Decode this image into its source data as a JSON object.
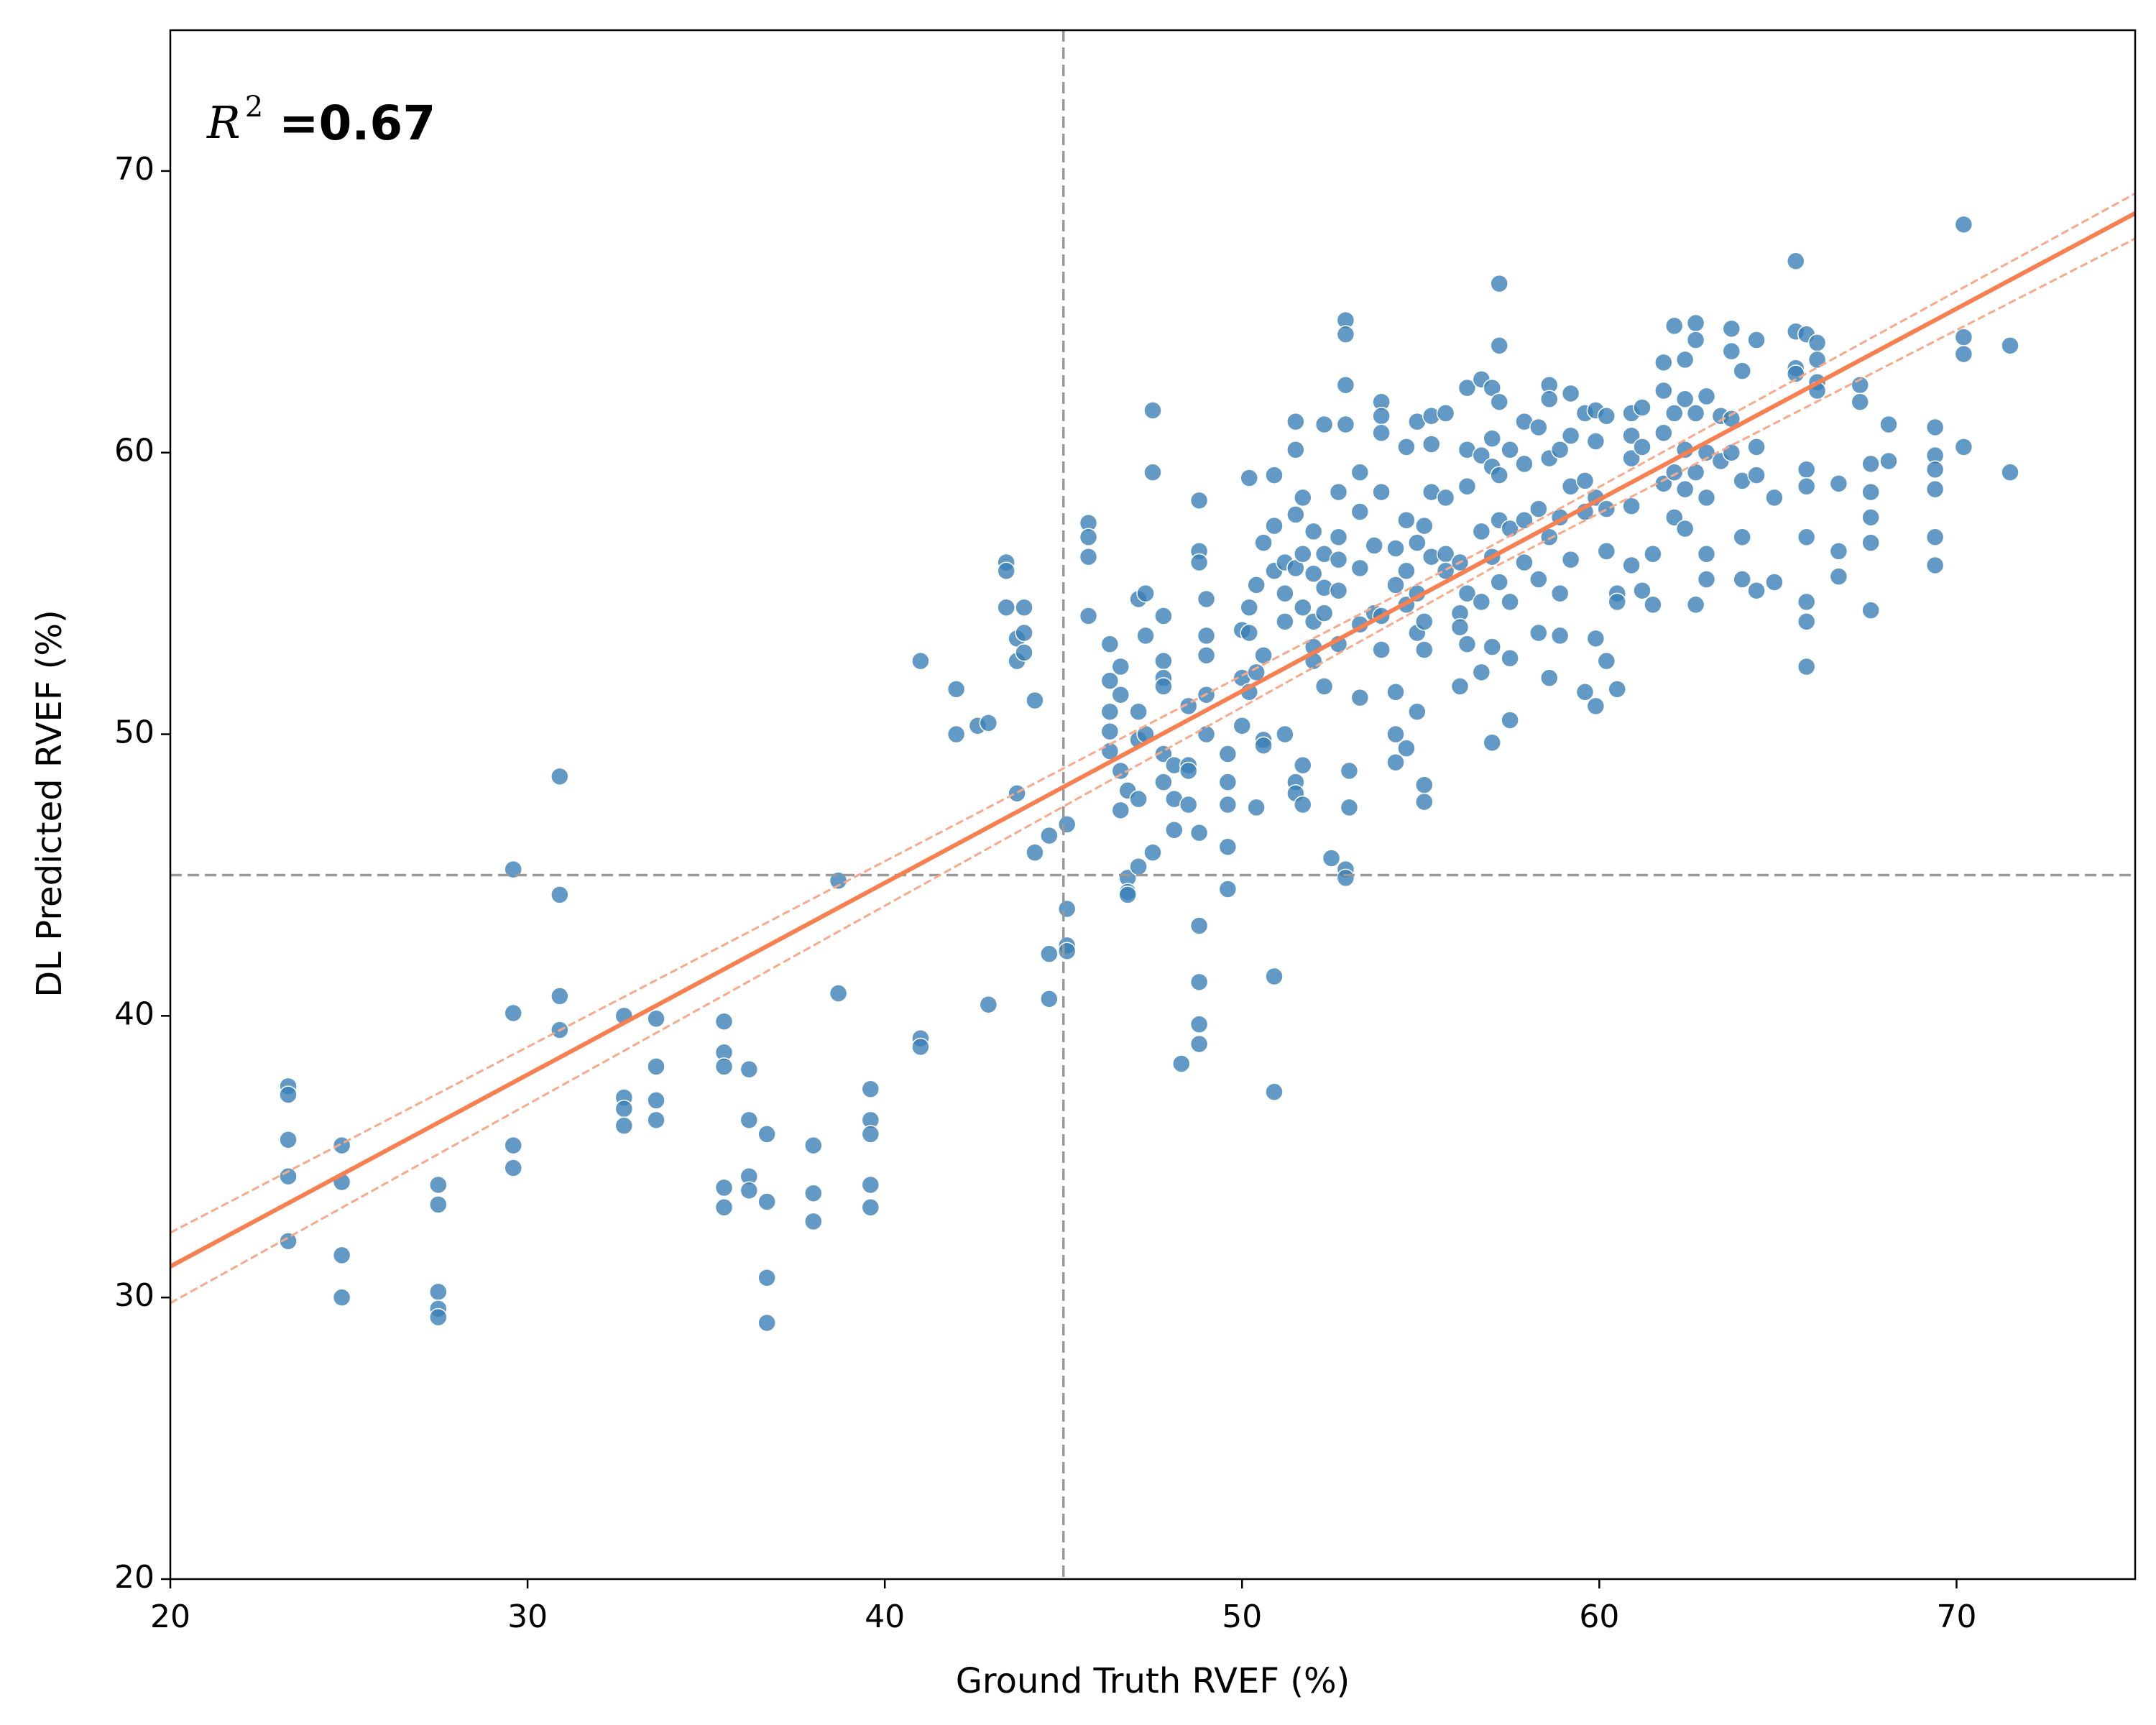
{
  "chart_data": {
    "type": "scatter",
    "xlabel": "Ground Truth RVEF (%)",
    "ylabel": "DL Predicted RVEF (%)",
    "annotation": {
      "symbol": "R",
      "superscript": "2",
      "text": "=0.67"
    },
    "xlim": [
      20,
      75
    ],
    "ylim": [
      20,
      75
    ],
    "xticks": [
      20,
      30,
      40,
      50,
      60,
      70
    ],
    "yticks": [
      20,
      30,
      40,
      50,
      60,
      70
    ],
    "color": "#3b7fb6",
    "fit": {
      "color": "#f77f50",
      "band_color": "#f8a98a",
      "x": [
        20,
        57,
        75
      ],
      "y": [
        31.1,
        56.3,
        68.5
      ],
      "upper": [
        32.3,
        56.7,
        69.2
      ],
      "lower": [
        29.8,
        55.9,
        67.6
      ]
    },
    "reference_lines": {
      "x": 45,
      "y": 45,
      "color": "#999999"
    },
    "x": [
      23.3,
      23.3,
      23.3,
      23.3,
      23.3,
      24.8,
      24.8,
      24.8,
      24.8,
      27.5,
      27.5,
      27.5,
      27.5,
      27.5,
      29.6,
      29.6,
      29.6,
      29.6,
      30.9,
      30.9,
      30.9,
      30.9,
      32.7,
      32.7,
      32.7,
      32.7,
      33.6,
      33.6,
      33.6,
      33.6,
      35.5,
      35.5,
      35.5,
      35.5,
      35.5,
      36.2,
      36.2,
      36.2,
      36.2,
      36.7,
      36.7,
      36.7,
      36.7,
      38.0,
      38.0,
      38.0,
      38.7,
      38.7,
      39.6,
      39.6,
      39.6,
      39.6,
      39.6,
      41.0,
      41.0,
      41.0,
      42.0,
      42.0,
      42.6,
      42.9,
      42.9,
      43.4,
      43.4,
      43.4,
      43.7,
      43.7,
      43.7,
      43.9,
      43.9,
      43.9,
      44.2,
      44.2,
      44.6,
      44.6,
      44.6,
      45.1,
      45.1,
      45.1,
      45.1,
      45.7,
      45.7,
      45.7,
      45.7,
      46.3,
      46.3,
      46.3,
      46.3,
      46.3,
      46.6,
      46.6,
      46.6,
      46.6,
      46.8,
      46.8,
      46.8,
      46.8,
      47.1,
      47.1,
      47.1,
      47.1,
      47.1,
      47.3,
      47.3,
      47.3,
      47.5,
      47.5,
      47.5,
      47.8,
      47.8,
      47.8,
      47.8,
      47.8,
      47.8,
      48.1,
      48.1,
      48.1,
      48.3,
      48.5,
      48.5,
      48.5,
      48.5,
      48.8,
      48.8,
      48.8,
      48.8,
      48.8,
      48.8,
      48.8,
      48.8,
      49.0,
      49.0,
      49.0,
      49.0,
      49.0,
      49.6,
      49.6,
      49.6,
      49.6,
      49.6,
      50.0,
      50.0,
      50.0,
      50.2,
      50.2,
      50.2,
      50.2,
      50.4,
      50.4,
      50.4,
      50.6,
      50.6,
      50.6,
      50.6,
      50.9,
      50.9,
      50.9,
      50.9,
      50.9,
      51.2,
      51.2,
      51.2,
      51.2,
      51.5,
      51.5,
      51.5,
      51.5,
      51.5,
      51.5,
      51.7,
      51.7,
      51.7,
      51.7,
      51.7,
      52.0,
      52.0,
      52.0,
      52.0,
      52.0,
      52.3,
      52.3,
      52.3,
      52.3,
      52.3,
      52.5,
      52.7,
      52.7,
      52.7,
      52.7,
      52.7,
      52.9,
      52.9,
      52.9,
      52.9,
      52.9,
      52.9,
      53.0,
      53.0,
      53.3,
      53.3,
      53.3,
      53.3,
      53.3,
      53.7,
      53.7,
      53.9,
      53.9,
      53.9,
      53.9,
      53.9,
      53.9,
      54.3,
      54.3,
      54.3,
      54.3,
      54.3,
      54.6,
      54.6,
      54.6,
      54.6,
      54.6,
      54.9,
      54.9,
      54.9,
      54.9,
      54.9,
      55.1,
      55.1,
      55.1,
      55.1,
      55.1,
      55.3,
      55.3,
      55.3,
      55.3,
      55.7,
      55.7,
      55.7,
      55.7,
      56.1,
      56.1,
      56.1,
      56.1,
      56.3,
      56.3,
      56.3,
      56.3,
      56.3,
      56.7,
      56.7,
      56.7,
      56.7,
      56.7,
      57.0,
      57.0,
      57.0,
      57.0,
      57.0,
      57.0,
      57.2,
      57.2,
      57.2,
      57.2,
      57.2,
      57.2,
      57.5,
      57.5,
      57.5,
      57.5,
      57.5,
      57.9,
      57.9,
      57.9,
      57.9,
      58.3,
      58.3,
      58.3,
      58.3,
      58.6,
      58.6,
      58.6,
      58.6,
      58.6,
      58.9,
      58.9,
      58.9,
      58.9,
      59.2,
      59.2,
      59.2,
      59.2,
      59.6,
      59.6,
      59.6,
      59.6,
      59.9,
      59.9,
      59.9,
      59.9,
      59.9,
      60.2,
      60.2,
      60.2,
      60.2,
      60.5,
      60.5,
      60.5,
      60.9,
      60.9,
      60.9,
      60.9,
      60.9,
      61.2,
      61.2,
      61.2,
      61.5,
      61.5,
      61.8,
      61.8,
      61.8,
      61.8,
      62.1,
      62.1,
      62.1,
      62.1,
      62.4,
      62.4,
      62.4,
      62.4,
      62.4,
      62.7,
      62.7,
      62.7,
      62.7,
      62.7,
      63.0,
      63.0,
      63.0,
      63.0,
      63.0,
      63.4,
      63.4,
      63.7,
      63.7,
      63.7,
      63.7,
      64.0,
      64.0,
      64.0,
      64.0,
      64.4,
      64.4,
      64.4,
      64.4,
      64.9,
      64.9,
      65.5,
      65.5,
      65.5,
      65.5,
      65.8,
      65.8,
      65.8,
      65.8,
      65.8,
      65.8,
      65.8,
      66.1,
      66.1,
      66.1,
      66.1,
      66.7,
      66.7,
      66.7,
      67.3,
      67.3,
      67.6,
      67.6,
      67.6,
      67.6,
      67.6,
      68.1,
      68.1,
      69.4,
      69.4,
      69.4,
      69.4,
      69.4,
      69.4,
      70.2,
      70.2,
      70.2,
      70.2,
      71.5,
      71.5
    ],
    "values": [
      37.5,
      37.2,
      35.6,
      34.3,
      32.0,
      35.4,
      34.1,
      31.5,
      30.0,
      34.0,
      33.3,
      30.2,
      29.6,
      29.3,
      45.2,
      40.1,
      35.4,
      34.6,
      48.5,
      44.3,
      40.7,
      39.5,
      40.0,
      37.1,
      36.7,
      36.1,
      39.9,
      38.2,
      37.0,
      36.3,
      39.8,
      38.7,
      38.2,
      33.9,
      33.2,
      38.1,
      36.3,
      34.3,
      33.8,
      35.8,
      33.4,
      30.7,
      29.1,
      35.4,
      33.7,
      32.7,
      44.8,
      40.8,
      37.4,
      36.3,
      35.8,
      34.0,
      33.2,
      52.6,
      39.2,
      38.9,
      51.6,
      50.0,
      50.3,
      50.4,
      40.4,
      56.1,
      55.8,
      54.5,
      53.4,
      52.6,
      47.9,
      54.5,
      53.6,
      52.9,
      51.2,
      45.8,
      46.4,
      42.2,
      40.6,
      46.8,
      43.8,
      42.5,
      42.3,
      57.5,
      57.0,
      56.3,
      54.2,
      53.2,
      51.9,
      50.8,
      50.1,
      49.4,
      52.4,
      51.4,
      48.7,
      47.3,
      44.9,
      44.4,
      44.3,
      48.0,
      54.8,
      50.8,
      49.8,
      47.7,
      45.3,
      55.0,
      53.5,
      50.0,
      61.5,
      59.3,
      45.8,
      54.2,
      52.6,
      52.0,
      51.7,
      49.3,
      48.3,
      48.9,
      47.7,
      46.6,
      38.3,
      51.0,
      48.9,
      48.7,
      47.5,
      58.3,
      56.5,
      56.1,
      46.5,
      43.2,
      41.2,
      39.7,
      39.0,
      54.8,
      53.5,
      52.8,
      51.4,
      50.0,
      49.3,
      48.3,
      47.5,
      46.0,
      44.5,
      53.7,
      52.0,
      50.3,
      59.1,
      54.5,
      53.6,
      51.5,
      55.3,
      52.2,
      47.4,
      56.8,
      52.8,
      49.8,
      49.6,
      59.2,
      57.4,
      55.8,
      41.4,
      37.3,
      56.1,
      55.0,
      54.0,
      50.0,
      61.1,
      60.1,
      57.8,
      55.9,
      48.3,
      47.9,
      58.4,
      56.4,
      54.5,
      48.9,
      47.5,
      57.2,
      55.7,
      54.0,
      53.1,
      52.6,
      61.0,
      56.4,
      55.2,
      54.3,
      51.7,
      45.6,
      58.6,
      57.0,
      56.2,
      55.1,
      53.2,
      64.7,
      64.2,
      62.4,
      61.0,
      45.2,
      44.9,
      48.7,
      47.4,
      59.3,
      57.9,
      55.9,
      53.9,
      51.3,
      56.7,
      54.3,
      61.8,
      61.3,
      60.7,
      58.6,
      54.2,
      53.0,
      56.6,
      55.3,
      51.5,
      50.0,
      49.0,
      60.2,
      57.6,
      55.8,
      54.6,
      49.5,
      61.1,
      56.8,
      55.0,
      53.6,
      50.8,
      57.4,
      54.0,
      53.0,
      48.2,
      47.6,
      61.3,
      60.3,
      58.6,
      56.3,
      61.4,
      58.4,
      56.4,
      55.8,
      56.1,
      54.3,
      53.8,
      51.7,
      62.3,
      60.1,
      58.8,
      55.0,
      53.2,
      62.6,
      59.9,
      57.2,
      54.7,
      52.2,
      62.3,
      60.5,
      59.5,
      56.3,
      53.1,
      49.7,
      66.0,
      63.8,
      61.8,
      59.2,
      57.6,
      55.4,
      60.1,
      57.3,
      54.7,
      52.7,
      50.5,
      61.1,
      59.6,
      57.6,
      56.1,
      60.9,
      58.0,
      55.5,
      53.6,
      62.4,
      61.9,
      59.8,
      57.0,
      52.0,
      60.1,
      57.7,
      55.0,
      53.5,
      62.1,
      60.6,
      58.8,
      56.2,
      61.4,
      59.0,
      57.9,
      51.5,
      61.5,
      60.4,
      58.4,
      53.4,
      51.0,
      61.3,
      58.0,
      56.5,
      52.6,
      55.0,
      54.7,
      51.6,
      61.4,
      60.6,
      59.8,
      58.1,
      56.0,
      61.6,
      60.2,
      55.1,
      56.4,
      54.6,
      63.2,
      62.2,
      60.7,
      58.9,
      64.5,
      61.4,
      59.3,
      57.7,
      63.3,
      61.9,
      60.1,
      58.7,
      57.3,
      64.6,
      64.0,
      61.4,
      59.3,
      54.6,
      62.0,
      60.0,
      58.4,
      56.4,
      55.5,
      61.3,
      59.7,
      64.4,
      63.6,
      61.2,
      60.0,
      62.9,
      59.0,
      57.0,
      55.5,
      64.0,
      60.2,
      59.2,
      55.1,
      58.4,
      55.4,
      66.8,
      64.3,
      63.0,
      62.8,
      64.2,
      59.4,
      58.8,
      57.0,
      54.7,
      54.0,
      52.4,
      63.9,
      63.3,
      62.5,
      62.2,
      58.9,
      56.5,
      55.6,
      62.4,
      61.8,
      59.6,
      58.6,
      57.7,
      56.8,
      54.4,
      61.0,
      59.7,
      60.9,
      59.9,
      59.4,
      58.7,
      57.0,
      56.0,
      68.1,
      64.1,
      63.5,
      60.2,
      63.8,
      59.3
    ]
  }
}
